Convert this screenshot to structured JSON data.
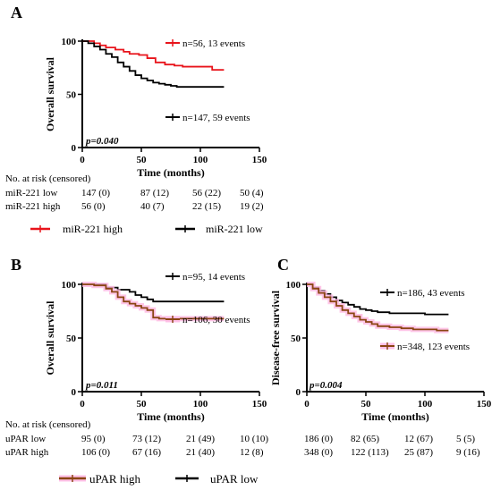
{
  "chart_data": [
    {
      "panel": "A",
      "type": "line",
      "title": "",
      "xlabel": "Time (months)",
      "ylabel": "Overall survival",
      "xlim": [
        0,
        150
      ],
      "ylim": [
        0,
        100
      ],
      "xticks": [
        0,
        50,
        100,
        150
      ],
      "yticks": [
        0,
        50,
        100
      ],
      "grid": false,
      "pvalue": "p=0.040",
      "series": [
        {
          "name": "miR-221 high",
          "color": "#e8141b",
          "annotation": "n=56, 13 events",
          "points": [
            [
              0,
              100
            ],
            [
              5,
              100
            ],
            [
              10,
              98
            ],
            [
              15,
              96
            ],
            [
              20,
              94
            ],
            [
              28,
              92
            ],
            [
              35,
              90
            ],
            [
              40,
              88
            ],
            [
              48,
              87
            ],
            [
              55,
              84
            ],
            [
              62,
              80
            ],
            [
              70,
              78
            ],
            [
              78,
              77
            ],
            [
              85,
              76
            ],
            [
              90,
              76
            ],
            [
              98,
              76
            ],
            [
              105,
              76
            ],
            [
              110,
              73
            ],
            [
              120,
              73
            ]
          ]
        },
        {
          "name": "miR-221 low",
          "color": "#000000",
          "annotation": "n=147, 59 events",
          "points": [
            [
              0,
              100
            ],
            [
              5,
              98
            ],
            [
              10,
              95
            ],
            [
              15,
              92
            ],
            [
              20,
              88
            ],
            [
              25,
              85
            ],
            [
              30,
              80
            ],
            [
              35,
              76
            ],
            [
              40,
              72
            ],
            [
              45,
              68
            ],
            [
              50,
              65
            ],
            [
              55,
              63
            ],
            [
              60,
              61
            ],
            [
              65,
              60
            ],
            [
              70,
              59
            ],
            [
              75,
              58
            ],
            [
              80,
              57
            ],
            [
              90,
              57
            ],
            [
              100,
              57
            ],
            [
              110,
              57
            ],
            [
              120,
              57
            ]
          ]
        }
      ],
      "risk_table": {
        "header": "No. at risk (censored)",
        "rows": [
          {
            "label": "miR-221 low",
            "values": [
              "147 (0)",
              "87 (12)",
              "56 (22)",
              "50 (4)"
            ]
          },
          {
            "label": "miR-221 high",
            "values": [
              "56 (0)",
              "40 (7)",
              "22 (15)",
              "19 (2)"
            ]
          }
        ]
      },
      "legend": [
        {
          "label": "miR-221 high",
          "color": "#e8141b"
        },
        {
          "label": "miR-221 low",
          "color": "#000000"
        }
      ]
    },
    {
      "panel": "B",
      "type": "line",
      "title": "",
      "xlabel": "Time (months)",
      "ylabel": "Overall survival",
      "xlim": [
        0,
        150
      ],
      "ylim": [
        0,
        100
      ],
      "xticks": [
        0,
        50,
        100,
        150
      ],
      "yticks": [
        0,
        50,
        100
      ],
      "grid": false,
      "pvalue": "p=0.011",
      "series": [
        {
          "name": "uPAR low",
          "color": "#000000",
          "annotation": "n=95, 14 events",
          "points": [
            [
              0,
              100
            ],
            [
              10,
              100
            ],
            [
              20,
              97
            ],
            [
              30,
              95
            ],
            [
              40,
              93
            ],
            [
              45,
              90
            ],
            [
              50,
              88
            ],
            [
              55,
              86
            ],
            [
              60,
              84
            ],
            [
              70,
              84
            ],
            [
              80,
              84
            ],
            [
              90,
              84
            ],
            [
              100,
              84
            ],
            [
              110,
              84
            ],
            [
              120,
              84
            ]
          ]
        },
        {
          "name": "uPAR high",
          "color": "#8b4513",
          "annotation": "n=106, 30 events",
          "points": [
            [
              0,
              100
            ],
            [
              10,
              99
            ],
            [
              20,
              96
            ],
            [
              25,
              93
            ],
            [
              30,
              88
            ],
            [
              35,
              84
            ],
            [
              40,
              82
            ],
            [
              45,
              80
            ],
            [
              50,
              78
            ],
            [
              55,
              76
            ],
            [
              60,
              69
            ],
            [
              65,
              68
            ],
            [
              70,
              68
            ],
            [
              80,
              68
            ],
            [
              90,
              68
            ],
            [
              100,
              68
            ],
            [
              110,
              68
            ],
            [
              120,
              68
            ]
          ]
        }
      ],
      "risk_table": {
        "header": "No. at risk (censored)",
        "rows": [
          {
            "label": "uPAR low",
            "values": [
              "95 (0)",
              "73 (12)",
              "21 (49)",
              "10 (10)"
            ]
          },
          {
            "label": "uPAR  high",
            "values": [
              "106 (0)",
              "67 (16)",
              "21 (40)",
              "12 (8)"
            ]
          }
        ]
      },
      "legend": [
        {
          "label": "uPAR high",
          "color": "#8b4513"
        },
        {
          "label": "uPAR low",
          "color": "#000000"
        }
      ]
    },
    {
      "panel": "C",
      "type": "line",
      "title": "",
      "xlabel": "Time (months)",
      "ylabel": "Disease-free survival",
      "xlim": [
        0,
        150
      ],
      "ylim": [
        0,
        100
      ],
      "xticks": [
        0,
        50,
        100,
        150
      ],
      "yticks": [
        0,
        50,
        100
      ],
      "grid": false,
      "pvalue": "p=0.004",
      "series": [
        {
          "name": "uPAR low",
          "color": "#000000",
          "annotation": "n=186, 43 events",
          "points": [
            [
              0,
              100
            ],
            [
              5,
              97
            ],
            [
              10,
              94
            ],
            [
              15,
              91
            ],
            [
              20,
              88
            ],
            [
              25,
              85
            ],
            [
              30,
              83
            ],
            [
              35,
              81
            ],
            [
              40,
              79
            ],
            [
              45,
              77
            ],
            [
              50,
              76
            ],
            [
              55,
              75
            ],
            [
              60,
              74
            ],
            [
              70,
              73
            ],
            [
              80,
              73
            ],
            [
              90,
              73
            ],
            [
              100,
              72
            ],
            [
              110,
              72
            ],
            [
              120,
              72
            ]
          ]
        },
        {
          "name": "uPAR high",
          "color": "#8b4513",
          "annotation": "n=348, 123 events",
          "points": [
            [
              0,
              100
            ],
            [
              5,
              96
            ],
            [
              10,
              92
            ],
            [
              15,
              88
            ],
            [
              20,
              84
            ],
            [
              25,
              80
            ],
            [
              30,
              76
            ],
            [
              35,
              73
            ],
            [
              40,
              70
            ],
            [
              45,
              67
            ],
            [
              50,
              65
            ],
            [
              55,
              63
            ],
            [
              60,
              61
            ],
            [
              70,
              60
            ],
            [
              80,
              59
            ],
            [
              90,
              58
            ],
            [
              100,
              58
            ],
            [
              110,
              57
            ],
            [
              120,
              57
            ]
          ]
        }
      ],
      "risk_table": {
        "rows": [
          {
            "label": "uPAR low",
            "values": [
              "186 (0)",
              "82 (65)",
              "12 (67)",
              "5 (5)"
            ]
          },
          {
            "label": "uPAR  high",
            "values": [
              "348 (0)",
              "122 (113)",
              "25 (87)",
              "9 (16)"
            ]
          }
        ]
      }
    }
  ]
}
